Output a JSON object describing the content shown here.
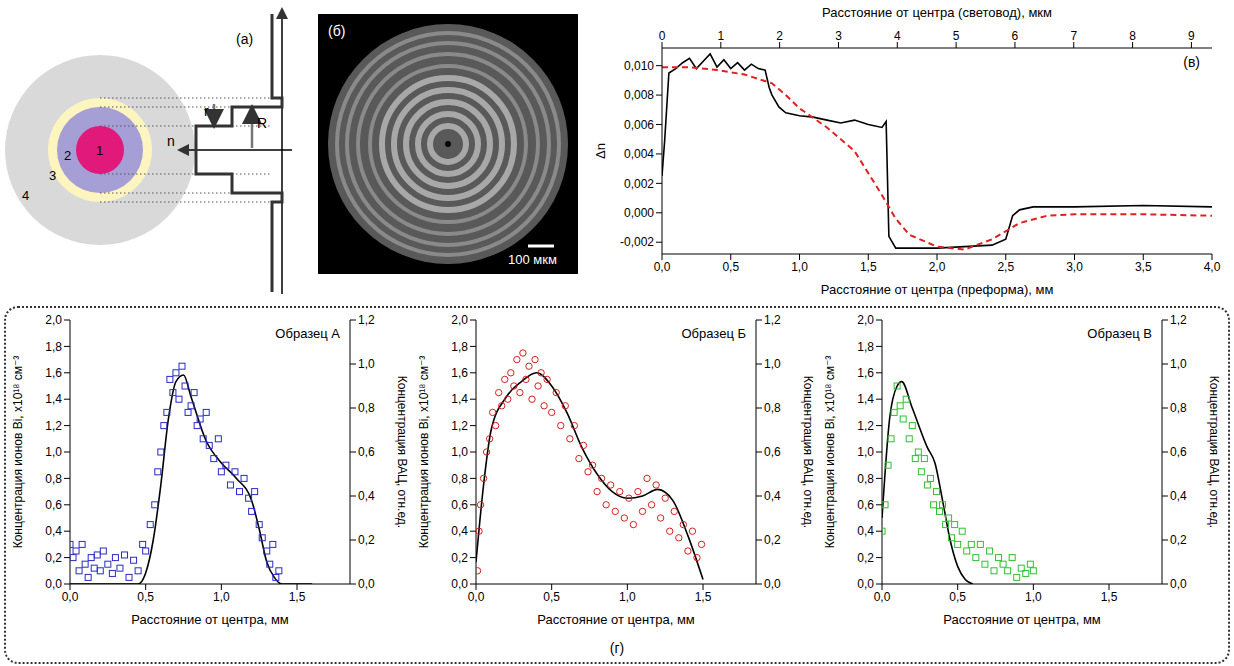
{
  "chart_data": [
    {
      "type": "line",
      "title": "(в)",
      "x_label": "Расстояние от центра (преформа), мм",
      "x2_label": "Расстояние от центра (световод), мкм",
      "y_label": "Δn",
      "xlim": [
        0,
        4.0
      ],
      "xticks": [
        {
          "value": 0,
          "label": "0,0"
        },
        {
          "value": 0.5,
          "label": "0,5"
        },
        {
          "value": 1.0,
          "label": "1,0"
        },
        {
          "value": 1.5,
          "label": "1,5"
        },
        {
          "value": 2.0,
          "label": "2,0"
        },
        {
          "value": 2.5,
          "label": "2,5"
        },
        {
          "value": 3.0,
          "label": "3,0"
        },
        {
          "value": 3.5,
          "label": "3,5"
        },
        {
          "value": 4.0,
          "label": "4,0"
        }
      ],
      "x2lim": [
        0,
        9.35
      ],
      "x2ticks": [
        0,
        1,
        2,
        3,
        4,
        5,
        6,
        7,
        8,
        9
      ],
      "ylim": [
        -0.0028,
        0.0112
      ],
      "yticks": [
        {
          "value": -0.002,
          "label": "-0,002"
        },
        {
          "value": 0,
          "label": "0,000"
        },
        {
          "value": 0.002,
          "label": "0,002"
        },
        {
          "value": 0.004,
          "label": "0,004"
        },
        {
          "value": 0.006,
          "label": "0,006"
        },
        {
          "value": 0.008,
          "label": "0,008"
        },
        {
          "value": 0.01,
          "label": "0,010"
        }
      ],
      "series": [
        {
          "type": "line",
          "color": "#000000",
          "line_style": "solid",
          "x": [
            0,
            0.02,
            0.05,
            0.1,
            0.15,
            0.2,
            0.25,
            0.3,
            0.35,
            0.4,
            0.45,
            0.5,
            0.55,
            0.6,
            0.65,
            0.7,
            0.75,
            0.78,
            0.8,
            0.85,
            0.9,
            1.0,
            1.1,
            1.2,
            1.3,
            1.4,
            1.5,
            1.6,
            1.63,
            1.65,
            1.7,
            1.8,
            2.0,
            2.2,
            2.4,
            2.5,
            2.55,
            2.6,
            2.7,
            2.9,
            3.0,
            3.5,
            4.0
          ],
          "values": [
            0.0025,
            0.005,
            0.0095,
            0.0098,
            0.0102,
            0.0105,
            0.0098,
            0.0103,
            0.0108,
            0.0099,
            0.0104,
            0.0098,
            0.0102,
            0.0097,
            0.0101,
            0.0098,
            0.0097,
            0.0085,
            0.008,
            0.0072,
            0.0068,
            0.0066,
            0.0065,
            0.0063,
            0.0061,
            0.0063,
            0.006,
            0.0058,
            0.0062,
            -0.0016,
            -0.0024,
            -0.0024,
            -0.0024,
            -0.0023,
            -0.0022,
            -0.0018,
            -0.0002,
            0.0002,
            0.0004,
            0.0004,
            0.0004,
            0.0005,
            0.0004
          ]
        },
        {
          "type": "line",
          "color": "#e02020",
          "line_style": "dashed",
          "x": [
            0,
            0.2,
            0.4,
            0.6,
            0.8,
            0.9,
            1.0,
            1.2,
            1.4,
            1.6,
            1.7,
            1.8,
            2.0,
            2.2,
            2.4,
            2.6,
            2.8,
            3.0,
            3.5,
            4.0
          ],
          "values": [
            0.0099,
            0.0099,
            0.0097,
            0.0094,
            0.0088,
            0.008,
            0.0071,
            0.0058,
            0.0042,
            0.0012,
            -0.0004,
            -0.0015,
            -0.0023,
            -0.0025,
            -0.0018,
            -0.0007,
            -0.0002,
            -0.0001,
            -0.0001,
            -0.0002
          ]
        }
      ]
    },
    {
      "type": "scatter",
      "title": "Образец А",
      "x_label": "Расстояние от центра, мм",
      "y_label": "Концентрация ионов Bi, x10¹⁸ см⁻³",
      "y2_label": "Концентрация ВАЦ, отн.ед.",
      "xlim": [
        0,
        1.85
      ],
      "xticks": [
        {
          "value": 0,
          "label": "0,0"
        },
        {
          "value": 0.5,
          "label": "0,5"
        },
        {
          "value": 1.0,
          "label": "1,0"
        },
        {
          "value": 1.5,
          "label": "1,5"
        }
      ],
      "ylim": [
        0,
        2.0
      ],
      "yticks": [
        {
          "value": 0,
          "label": "0,0"
        },
        {
          "value": 0.2,
          "label": "0,2"
        },
        {
          "value": 0.4,
          "label": "0,4"
        },
        {
          "value": 0.6,
          "label": "0,6"
        },
        {
          "value": 0.8,
          "label": "0,8"
        },
        {
          "value": 1.0,
          "label": "1,0"
        },
        {
          "value": 1.2,
          "label": "1,2"
        },
        {
          "value": 1.4,
          "label": "1,4"
        },
        {
          "value": 1.6,
          "label": "1,6"
        },
        {
          "value": 1.8,
          "label": "1,8"
        },
        {
          "value": 2.0,
          "label": "2,0"
        }
      ],
      "y2lim": [
        0,
        1.2
      ],
      "y2ticks": [
        {
          "value": 0,
          "label": "0,0"
        },
        {
          "value": 0.2,
          "label": "0,2"
        },
        {
          "value": 0.4,
          "label": "0,4"
        },
        {
          "value": 0.6,
          "label": "0,6"
        },
        {
          "value": 0.8,
          "label": "0,8"
        },
        {
          "value": 1.0,
          "label": "1,0"
        },
        {
          "value": 1.2,
          "label": "1,2"
        }
      ],
      "series": [
        {
          "type": "scatter",
          "color": "#2a2ac8",
          "marker": "square",
          "x": [
            0.0,
            0.02,
            0.04,
            0.06,
            0.08,
            0.1,
            0.12,
            0.14,
            0.16,
            0.18,
            0.2,
            0.22,
            0.25,
            0.28,
            0.3,
            0.33,
            0.36,
            0.39,
            0.42,
            0.45,
            0.48,
            0.5,
            0.53,
            0.56,
            0.58,
            0.6,
            0.62,
            0.64,
            0.66,
            0.68,
            0.7,
            0.72,
            0.74,
            0.76,
            0.78,
            0.8,
            0.82,
            0.84,
            0.86,
            0.88,
            0.9,
            0.92,
            0.95,
            0.98,
            1.0,
            1.03,
            1.06,
            1.09,
            1.12,
            1.15,
            1.18,
            1.2,
            1.22,
            1.25,
            1.27,
            1.3,
            1.32,
            1.34,
            1.36,
            1.38
          ],
          "values": [
            0.3,
            0.2,
            0.25,
            0.1,
            0.3,
            0.15,
            0.05,
            0.2,
            0.12,
            0.22,
            0.1,
            0.25,
            0.15,
            0.08,
            0.2,
            0.12,
            0.22,
            0.05,
            0.18,
            0.1,
            0.3,
            0.25,
            0.45,
            0.6,
            0.85,
            1.0,
            1.2,
            1.3,
            1.55,
            1.45,
            1.6,
            1.4,
            1.65,
            1.5,
            1.3,
            1.35,
            1.45,
            1.2,
            1.25,
            1.1,
            1.3,
            1.05,
            0.95,
            1.1,
            0.85,
            0.9,
            0.75,
            0.85,
            0.7,
            0.8,
            0.65,
            0.55,
            0.7,
            0.45,
            0.35,
            0.25,
            0.15,
            0.3,
            0.05,
            0.1
          ]
        },
        {
          "type": "line",
          "color": "#000000",
          "line_style": "solid",
          "axis": "y2",
          "x": [
            0,
            0.2,
            0.45,
            0.5,
            0.55,
            0.6,
            0.65,
            0.7,
            0.75,
            0.8,
            0.9,
            1.0,
            1.1,
            1.2,
            1.25,
            1.3,
            1.35,
            1.4,
            1.6
          ],
          "values": [
            0,
            0,
            0,
            0.05,
            0.2,
            0.45,
            0.75,
            0.92,
            0.95,
            0.85,
            0.65,
            0.55,
            0.48,
            0.38,
            0.25,
            0.1,
            0.03,
            0,
            0
          ]
        }
      ]
    },
    {
      "type": "scatter",
      "title": "Образец Б",
      "x_label": "Расстояние от центра, мм",
      "y_label": "Концентрация ионов Bi, x10¹⁸ см⁻³",
      "y2_label": "Концентрация ВАЦ, отн.ед.",
      "xlim": [
        0,
        1.85
      ],
      "xticks": [
        {
          "value": 0,
          "label": "0,0"
        },
        {
          "value": 0.5,
          "label": "0,5"
        },
        {
          "value": 1.0,
          "label": "1,0"
        },
        {
          "value": 1.5,
          "label": "1,5"
        }
      ],
      "ylim": [
        0,
        2.0
      ],
      "yticks": [
        {
          "value": 0,
          "label": "0,0"
        },
        {
          "value": 0.2,
          "label": "0,2"
        },
        {
          "value": 0.4,
          "label": "0,4"
        },
        {
          "value": 0.6,
          "label": "0,6"
        },
        {
          "value": 0.8,
          "label": "0,8"
        },
        {
          "value": 1.0,
          "label": "1,0"
        },
        {
          "value": 1.2,
          "label": "1,2"
        },
        {
          "value": 1.4,
          "label": "1,4"
        },
        {
          "value": 1.6,
          "label": "1,6"
        },
        {
          "value": 1.8,
          "label": "1,8"
        },
        {
          "value": 2.0,
          "label": "2,0"
        }
      ],
      "y2lim": [
        0,
        1.2
      ],
      "y2ticks": [
        {
          "value": 0,
          "label": "0,0"
        },
        {
          "value": 0.2,
          "label": "0,2"
        },
        {
          "value": 0.4,
          "label": "0,4"
        },
        {
          "value": 0.6,
          "label": "0,6"
        },
        {
          "value": 0.8,
          "label": "0,8"
        },
        {
          "value": 1.0,
          "label": "1,0"
        },
        {
          "value": 1.2,
          "label": "1,2"
        }
      ],
      "series": [
        {
          "type": "scatter",
          "color": "#d42020",
          "marker": "circle",
          "x": [
            0.01,
            0.02,
            0.03,
            0.05,
            0.07,
            0.09,
            0.11,
            0.13,
            0.15,
            0.17,
            0.19,
            0.21,
            0.23,
            0.25,
            0.27,
            0.29,
            0.31,
            0.33,
            0.35,
            0.37,
            0.39,
            0.41,
            0.43,
            0.45,
            0.47,
            0.5,
            0.53,
            0.56,
            0.59,
            0.62,
            0.65,
            0.68,
            0.71,
            0.74,
            0.77,
            0.8,
            0.83,
            0.86,
            0.89,
            0.92,
            0.95,
            0.98,
            1.01,
            1.04,
            1.07,
            1.1,
            1.13,
            1.16,
            1.19,
            1.22,
            1.25,
            1.28,
            1.31,
            1.34,
            1.37,
            1.4,
            1.43,
            1.46,
            1.49
          ],
          "values": [
            0.1,
            0.4,
            0.6,
            0.8,
            1.0,
            1.1,
            1.3,
            1.2,
            1.45,
            1.35,
            1.55,
            1.4,
            1.6,
            1.5,
            1.7,
            1.45,
            1.75,
            1.55,
            1.65,
            1.4,
            1.7,
            1.5,
            1.6,
            1.35,
            1.55,
            1.3,
            1.45,
            1.2,
            1.35,
            1.1,
            1.2,
            0.95,
            1.05,
            0.85,
            0.9,
            0.7,
            0.8,
            0.6,
            0.75,
            0.55,
            0.7,
            0.5,
            0.65,
            0.45,
            0.7,
            0.55,
            0.8,
            0.6,
            0.75,
            0.5,
            0.65,
            0.4,
            0.55,
            0.35,
            0.45,
            0.25,
            0.4,
            0.2,
            0.3
          ]
        },
        {
          "type": "line",
          "color": "#000000",
          "line_style": "solid",
          "axis": "y2",
          "x": [
            0,
            0.05,
            0.1,
            0.2,
            0.3,
            0.4,
            0.5,
            0.6,
            0.7,
            0.8,
            0.9,
            1.0,
            1.1,
            1.2,
            1.3,
            1.4,
            1.5
          ],
          "values": [
            0.1,
            0.45,
            0.7,
            0.85,
            0.92,
            0.96,
            0.9,
            0.78,
            0.62,
            0.5,
            0.42,
            0.39,
            0.4,
            0.43,
            0.38,
            0.22,
            0.02
          ]
        }
      ]
    },
    {
      "type": "scatter",
      "title": "Образец В",
      "x_label": "Расстояние от центра, мм",
      "y_label": "Концентрация ионов Bi, x10¹⁸ см⁻³",
      "y2_label": "Концентрация ВАЦ, отн.ед.",
      "xlim": [
        0,
        1.85
      ],
      "xticks": [
        {
          "value": 0,
          "label": "0,0"
        },
        {
          "value": 0.5,
          "label": "0,5"
        },
        {
          "value": 1.0,
          "label": "1,0"
        },
        {
          "value": 1.5,
          "label": "1,5"
        }
      ],
      "ylim": [
        0,
        2.0
      ],
      "yticks": [
        {
          "value": 0,
          "label": "0,0"
        },
        {
          "value": 0.2,
          "label": "0,2"
        },
        {
          "value": 0.4,
          "label": "0,4"
        },
        {
          "value": 0.6,
          "label": "0,6"
        },
        {
          "value": 0.8,
          "label": "0,8"
        },
        {
          "value": 1.0,
          "label": "1,0"
        },
        {
          "value": 1.2,
          "label": "1,2"
        },
        {
          "value": 1.4,
          "label": "1,4"
        },
        {
          "value": 1.6,
          "label": "1,6"
        },
        {
          "value": 1.8,
          "label": "1,8"
        },
        {
          "value": 2.0,
          "label": "2,0"
        }
      ],
      "y2lim": [
        0,
        1.2
      ],
      "y2ticks": [
        {
          "value": 0,
          "label": "0,0"
        },
        {
          "value": 0.2,
          "label": "0,2"
        },
        {
          "value": 0.4,
          "label": "0,4"
        },
        {
          "value": 0.6,
          "label": "0,6"
        },
        {
          "value": 0.8,
          "label": "0,8"
        },
        {
          "value": 1.0,
          "label": "1,0"
        },
        {
          "value": 1.2,
          "label": "1,2"
        }
      ],
      "series": [
        {
          "type": "scatter",
          "color": "#30c030",
          "marker": "square",
          "x": [
            0.0,
            0.02,
            0.04,
            0.06,
            0.08,
            0.1,
            0.12,
            0.14,
            0.16,
            0.18,
            0.2,
            0.22,
            0.24,
            0.26,
            0.28,
            0.3,
            0.32,
            0.34,
            0.36,
            0.38,
            0.4,
            0.42,
            0.44,
            0.46,
            0.48,
            0.5,
            0.53,
            0.56,
            0.59,
            0.62,
            0.65,
            0.68,
            0.71,
            0.74,
            0.77,
            0.8,
            0.83,
            0.86,
            0.89,
            0.92,
            0.95,
            0.98,
            1.0
          ],
          "values": [
            0.4,
            0.6,
            0.9,
            1.1,
            1.3,
            1.5,
            1.35,
            1.25,
            1.4,
            1.1,
            1.2,
            0.95,
            1.0,
            0.85,
            0.95,
            0.75,
            0.8,
            0.6,
            0.7,
            0.55,
            0.6,
            0.45,
            0.5,
            0.35,
            0.45,
            0.3,
            0.4,
            0.25,
            0.3,
            0.2,
            0.3,
            0.15,
            0.25,
            0.1,
            0.2,
            0.15,
            0.1,
            0.2,
            0.05,
            0.12,
            0.08,
            0.15,
            0.1
          ]
        },
        {
          "type": "line",
          "color": "#000000",
          "line_style": "solid",
          "axis": "y2",
          "x": [
            0,
            0.05,
            0.1,
            0.13,
            0.2,
            0.3,
            0.35,
            0.4,
            0.45,
            0.5,
            0.55,
            0.6
          ],
          "values": [
            0.3,
            0.75,
            0.9,
            0.92,
            0.8,
            0.62,
            0.55,
            0.38,
            0.2,
            0.08,
            0.02,
            0
          ]
        }
      ]
    }
  ],
  "diagram": {
    "label": "(а)",
    "layers": [
      "1",
      "2",
      "3",
      "4"
    ],
    "radius_labels": [
      "r",
      "R"
    ],
    "axis_label": "n"
  },
  "image": {
    "label": "(б)",
    "scale_bar": "100 мкм"
  },
  "panel_label": "(г)"
}
